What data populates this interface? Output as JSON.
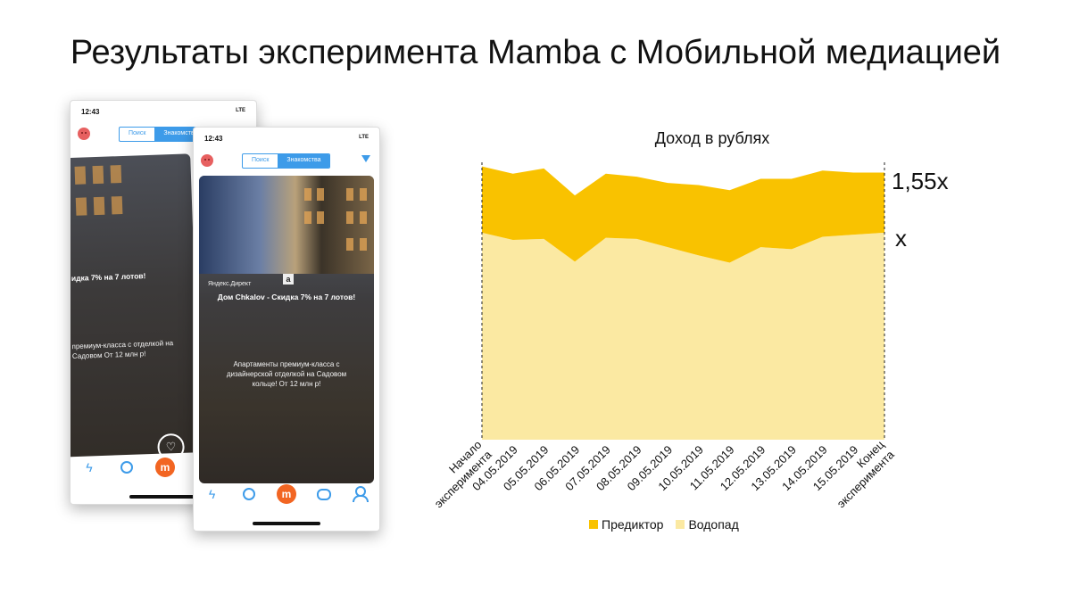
{
  "slide": {
    "title": "Результаты эксперимента Mamba с Мобильной медиацией"
  },
  "phone_back": {
    "time": "12:43",
    "signal": "LTE",
    "tabs": [
      "Поиск",
      "Знакомства"
    ],
    "ad_title": "идка 7% на 7 лотов!",
    "ad_text": "премиум-класса с отделкой на Садовом От 12 млн р!",
    "like_icon": "heart-icon"
  },
  "phone_front": {
    "time": "12:43",
    "signal": "LTE",
    "tabs": [
      "Поиск",
      "Знакомства"
    ],
    "ad_source": "Яндекс.Директ",
    "ad_badge": "a",
    "ad_title": "Дом Chkalov - Скидка 7% на 7 лотов!",
    "ad_text": "Апартаменты премиум-класса с дизайнерской отделкой на Садовом кольце! От 12 млн р!",
    "tabbar_icons": [
      "bolt-icon",
      "radar-icon",
      "mamba-logo-icon",
      "chat-icon",
      "profile-icon"
    ]
  },
  "chart_data": {
    "type": "area",
    "title": "Доход в рублях",
    "categories": [
      "Начало эксперимента",
      "04.05.2019",
      "05.05.2019",
      "06.05.2019",
      "07.05.2019",
      "08.05.2019",
      "09.05.2019",
      "10.05.2019",
      "11.05.2019",
      "12.05.2019",
      "13.05.2019",
      "14.05.2019",
      "15.05.2019",
      "Конец эксперимента"
    ],
    "stacked": true,
    "series": [
      {
        "name": "Водопад",
        "color": "#fbe9a2",
        "values": [
          1.0,
          0.965,
          0.97,
          0.86,
          0.975,
          0.97,
          0.93,
          0.89,
          0.855,
          0.93,
          0.92,
          0.98,
          0.99,
          1.0
        ]
      },
      {
        "name": "Предиктор",
        "color": "#f9c200",
        "values": [
          0.32,
          0.32,
          0.34,
          0.32,
          0.31,
          0.3,
          0.31,
          0.34,
          0.35,
          0.33,
          0.34,
          0.32,
          0.3,
          0.29
        ]
      }
    ],
    "ylim": [
      0,
      1.4
    ],
    "annotations": [
      {
        "text": "1,55x"
      },
      {
        "text": "x"
      }
    ],
    "legend": "bottom"
  }
}
